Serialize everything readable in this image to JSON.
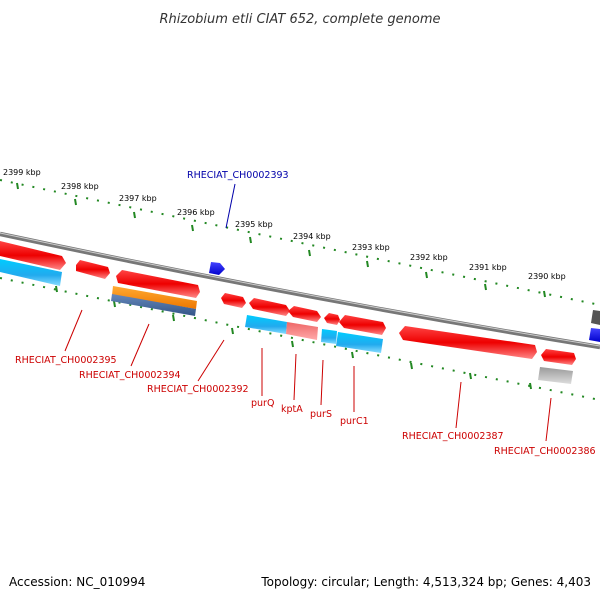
{
  "title": "Rhizobium etli CIAT 652, complete genome",
  "footer": {
    "accession": "Accession: NC_010994",
    "summary": "Topology: circular; Length: 4,513,324 bp; Genes: 4,403"
  },
  "scale_ticks": [
    {
      "label": "2399 kbp"
    },
    {
      "label": "2398 kbp"
    },
    {
      "label": "2397 kbp"
    },
    {
      "label": "2396 kbp"
    },
    {
      "label": "2395 kbp"
    },
    {
      "label": "2394 kbp"
    },
    {
      "label": "2393 kbp"
    },
    {
      "label": "2392 kbp"
    },
    {
      "label": "2391 kbp"
    },
    {
      "label": "2390 kbp"
    }
  ],
  "gene_labels": [
    {
      "text": "RHECIAT_CH0002393",
      "color": "#0000aa"
    },
    {
      "text": "RHECIAT_CH0002395",
      "color": "#cc0000"
    },
    {
      "text": "RHECIAT_CH0002394",
      "color": "#cc0000"
    },
    {
      "text": "RHECIAT_CH0002392",
      "color": "#cc0000"
    },
    {
      "text": "purQ",
      "color": "#cc0000"
    },
    {
      "text": "kptA",
      "color": "#cc0000"
    },
    {
      "text": "purS",
      "color": "#cc0000"
    },
    {
      "text": "purC1",
      "color": "#cc0000"
    },
    {
      "text": "RHECIAT_CH0002387",
      "color": "#cc0000"
    },
    {
      "text": "RHECIAT_CH0002386",
      "color": "#cc0000"
    }
  ],
  "colors": {
    "forward_gene": "#ee0000",
    "reverse_gene": "#0000ee",
    "feature_cyan": "#22aaee",
    "feature_orange": "#ff9922",
    "feature_gray": "#aaaaaa",
    "backbone": "#888888",
    "scale_dots": "#228822"
  }
}
